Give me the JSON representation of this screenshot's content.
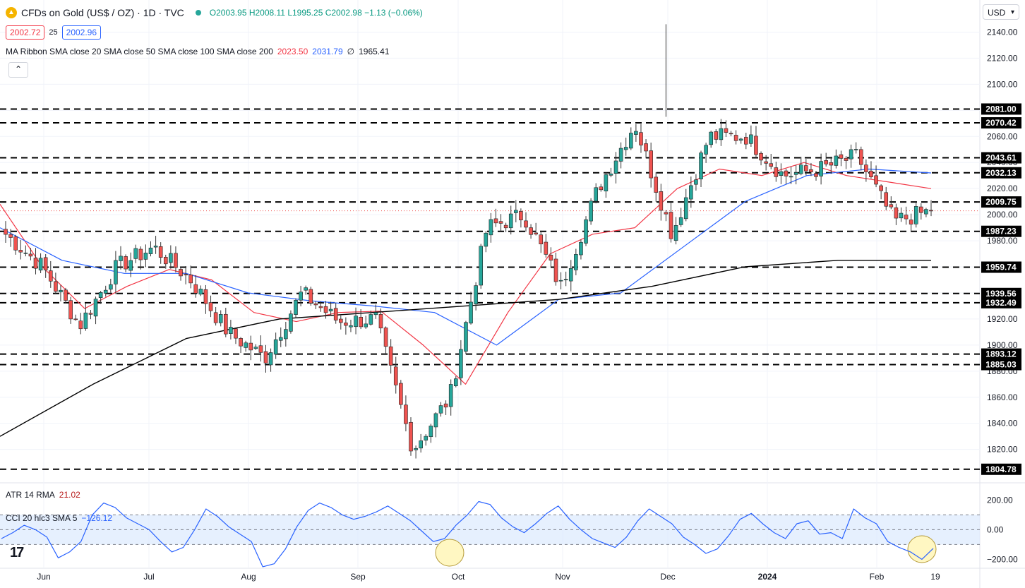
{
  "header": {
    "symbol": "CFDs on Gold (US$ / OZ) · 1D · TVC",
    "ohlc": "O2003.95 H2008.11 L1995.25 C2002.98 −1.13 (−0.06%)",
    "bid": "2002.72",
    "spread": "25",
    "ask": "2002.96",
    "ma_label": "MA Ribbon SMA close 20 SMA close 50 SMA close 100 SMA close 200",
    "ma_v1": "2023.50",
    "ma_v2": "2031.79",
    "ma_v3": "∅",
    "ma_v4": "1965.41",
    "currency": "USD",
    "atr_label": "ATR 14 RMA",
    "atr_value": "21.02",
    "cci_label": "CCI 20 hlc3 SMA 5",
    "cci_value": "−126.12",
    "logo": "17"
  },
  "colors": {
    "bull": "#26a69a",
    "bear": "#ef5350",
    "sma20": "#f23645",
    "sma50": "#2962ff",
    "sma200": "#000000",
    "cci": "#2962ff",
    "band": "#dbeafe",
    "highlight": "#fff7c2"
  },
  "chart_data": [
    {
      "type": "candlestick",
      "title": "CFDs on Gold (US$ / OZ)",
      "ylim": [
        1796,
        2150
      ],
      "y_ticks": [
        1820,
        1840,
        1860,
        1880,
        1900,
        1920,
        1940,
        1960,
        1980,
        2000,
        2020,
        2040,
        2060,
        2080,
        2100,
        2120,
        2140
      ],
      "x_tick_labels": [
        "Jun",
        "Jul",
        "Aug",
        "Sep",
        "Oct",
        "Nov",
        "Dec",
        "2024",
        "Feb",
        "19"
      ],
      "horizontal_levels": [
        2081.0,
        2070.42,
        2043.61,
        2032.13,
        2009.75,
        1987.23,
        1959.74,
        1939.56,
        1932.49,
        1893.12,
        1885.03,
        1804.78
      ],
      "last_price": 2002.98,
      "anchors_ohlc_path": [
        {
          "m": "Jun",
          "v": 1985
        },
        {
          "m": "Jun-mid",
          "v": 1960
        },
        {
          "m": "Jun-end",
          "v": 1915
        },
        {
          "m": "Jul-mid",
          "v": 1960
        },
        {
          "m": "Jul-end",
          "v": 1975
        },
        {
          "m": "Aug",
          "v": 1950
        },
        {
          "m": "Aug-mid",
          "v": 1910
        },
        {
          "m": "Aug-end",
          "v": 1890
        },
        {
          "m": "Sep",
          "v": 1940
        },
        {
          "m": "Sep-mid",
          "v": 1918
        },
        {
          "m": "Sep-end",
          "v": 1920
        },
        {
          "m": "Oct",
          "v": 1820
        },
        {
          "m": "Oct-mid",
          "v": 1860
        },
        {
          "m": "Oct-end",
          "v": 1990
        },
        {
          "m": "Nov",
          "v": 2000
        },
        {
          "m": "Nov-mid",
          "v": 1945
        },
        {
          "m": "Nov-end",
          "v": 2020
        },
        {
          "m": "Dec",
          "v": 2070
        },
        {
          "m": "Dec-mid",
          "v": 1985
        },
        {
          "m": "Dec-end",
          "v": 2060
        },
        {
          "m": "2024",
          "v": 2060
        },
        {
          "m": "Jan-mid",
          "v": 2030
        },
        {
          "m": "Jan-end",
          "v": 2035
        },
        {
          "m": "Feb",
          "v": 2045
        },
        {
          "m": "Feb-mid",
          "v": 1995
        },
        {
          "m": "Feb-16",
          "v": 2003
        }
      ],
      "ma_ribbon": {
        "sma20": [
          2008,
          1960,
          1928,
          1945,
          1958,
          1950,
          1925,
          1918,
          1925,
          1926,
          1900,
          1870,
          1925,
          1970,
          1985,
          1990,
          2020,
          2035,
          2030,
          2040,
          2030,
          2025,
          2020
        ],
        "sma50": [
          1990,
          1965,
          1955,
          1955,
          1940,
          1934,
          1930,
          1925,
          1900,
          1935,
          1940,
          1975,
          2010,
          2030,
          2035,
          2032
        ],
        "sma200": [
          1830,
          1870,
          1905,
          1920,
          1925,
          1930,
          1935,
          1945,
          1960,
          1965,
          1965
        ]
      }
    },
    {
      "type": "line",
      "title": "ATR 14 RMA",
      "value": 21.02
    },
    {
      "type": "line",
      "title": "CCI 20 hlc3 SMA 5",
      "ylim": [
        -260,
        240
      ],
      "y_ticks": [
        200,
        0,
        -200
      ],
      "y_tick_labels": [
        "200.00",
        "0.00",
        "−200.00"
      ],
      "band": [
        -100,
        100
      ],
      "last_value": -126.12,
      "values_path": [
        -60,
        -20,
        30,
        0,
        -50,
        -190,
        -150,
        -80,
        100,
        180,
        150,
        80,
        40,
        0,
        -80,
        -150,
        -120,
        0,
        140,
        90,
        20,
        -30,
        -80,
        -250,
        -230,
        -130,
        20,
        130,
        180,
        150,
        100,
        70,
        90,
        120,
        160,
        110,
        60,
        -10,
        -80,
        -60,
        30,
        100,
        190,
        170,
        80,
        20,
        -20,
        40,
        110,
        160,
        70,
        0,
        -60,
        -90,
        -120,
        -50,
        60,
        140,
        90,
        40,
        -50,
        -100,
        -160,
        -130,
        -40,
        70,
        110,
        40,
        -20,
        -60,
        40,
        60,
        -30,
        -20,
        -60,
        140,
        80,
        40,
        -80,
        -120,
        -150,
        -200,
        -126
      ]
    }
  ]
}
